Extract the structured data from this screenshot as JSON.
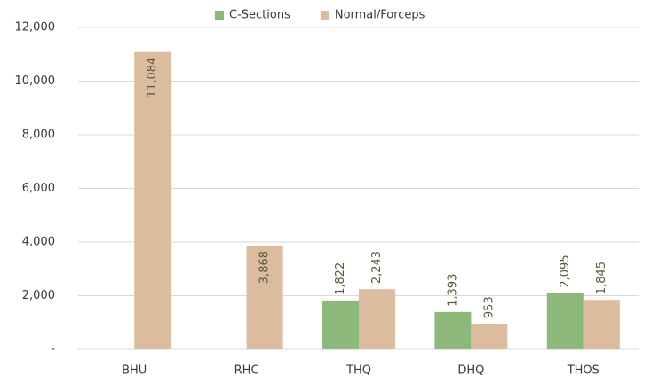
{
  "chart_data": {
    "type": "bar",
    "categories": [
      "BHU",
      "RHC",
      "THQ",
      "DHQ",
      "THOS"
    ],
    "series": [
      {
        "name": "C-Sections",
        "color": "#8cb87a",
        "values": [
          null,
          null,
          1822,
          1393,
          2095
        ],
        "value_labels": [
          null,
          null,
          "1,822",
          "1,393",
          "2,095"
        ]
      },
      {
        "name": "Normal/Forceps",
        "color": "#dcbc9f",
        "values": [
          11084,
          3868,
          2243,
          953,
          1845
        ],
        "value_labels": [
          "11,084",
          "3,868",
          "2,243",
          "953",
          "1,845"
        ]
      }
    ],
    "ylim": [
      0,
      12000
    ],
    "yticks": [
      {
        "value": 0,
        "label": "-"
      },
      {
        "value": 2000,
        "label": "2,000"
      },
      {
        "value": 4000,
        "label": "4,000"
      },
      {
        "value": 6000,
        "label": "6,000"
      },
      {
        "value": 8000,
        "label": "8,000"
      },
      {
        "value": 10000,
        "label": "10,000"
      },
      {
        "value": 12000,
        "label": "12,000"
      }
    ],
    "grid": true,
    "legend": "top"
  }
}
